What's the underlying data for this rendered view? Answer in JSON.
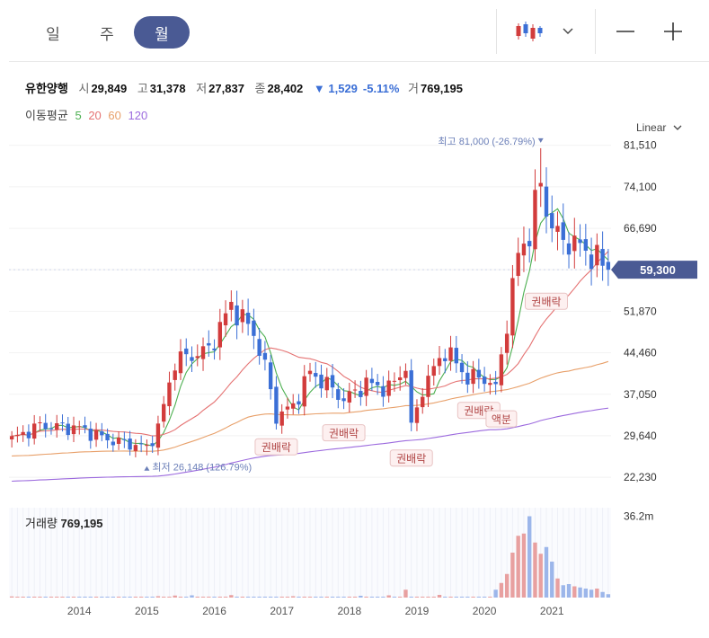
{
  "toolbar": {
    "tabs": [
      {
        "label": "일",
        "active": false
      },
      {
        "label": "주",
        "active": false
      },
      {
        "label": "월",
        "active": true
      }
    ],
    "chart_type_icon": "candlestick-icon",
    "dropdown_icon": "chevron-down-icon",
    "zoom_out_icon": "minus-icon",
    "zoom_in_icon": "plus-icon"
  },
  "quote": {
    "name": "유한양행",
    "open_label": "시",
    "open": "29,849",
    "high_label": "고",
    "high": "31,378",
    "low_label": "저",
    "low": "27,837",
    "close_label": "종",
    "close": "28,402",
    "change": "▼ 1,529",
    "change_pct": "-5.11%",
    "volume_label": "거",
    "volume": "769,195"
  },
  "moving_avg": {
    "label": "이동평균",
    "periods": [
      {
        "value": "5",
        "color": "#4caf50"
      },
      {
        "value": "20",
        "color": "#e57373"
      },
      {
        "value": "60",
        "color": "#e8a06a"
      },
      {
        "value": "120",
        "color": "#9c6ade"
      }
    ]
  },
  "scale": {
    "label": "Linear"
  },
  "colors": {
    "up": "#d23c3c",
    "down": "#3b6fd6",
    "accent": "#4a5a94"
  },
  "chart_data": {
    "type": "candlestick",
    "ylim": [
      20000,
      85000
    ],
    "y_ticks": [
      "81,510",
      "74,100",
      "66,690",
      "59,300",
      "51,870",
      "44,460",
      "37,050",
      "29,640",
      "22,230"
    ],
    "y_tick_values": [
      81510,
      74100,
      66690,
      59300,
      51870,
      44460,
      37050,
      29640,
      22230
    ],
    "current_price_label": "59,300",
    "current_price": 59300,
    "x_ticks": [
      "2014",
      "2015",
      "2016",
      "2017",
      "2018",
      "2019",
      "2020",
      "2021"
    ],
    "x_start": "2013-01",
    "x_end": "2021-11",
    "high_annotation": "최고 81,000 (-26.79%)",
    "high_point": {
      "date": "2020-11",
      "value": 81000
    },
    "low_annotation": "최저 26,148 (126.79%)",
    "low_point": {
      "date": "2015-01",
      "value": 26148
    },
    "events": [
      {
        "label": "권배락",
        "date": "2016-12",
        "value": 32000
      },
      {
        "label": "권배락",
        "date": "2017-12",
        "value": 34500
      },
      {
        "label": "권배락",
        "date": "2018-12",
        "value": 30000
      },
      {
        "label": "권배락",
        "date": "2019-12",
        "value": 38500
      },
      {
        "label": "액분",
        "date": "2020-04",
        "value": 37000
      },
      {
        "label": "권배락",
        "date": "2020-12",
        "value": 58000
      }
    ],
    "key_points": [
      {
        "date": "2013-01",
        "value": 29000
      },
      {
        "date": "2013-06",
        "value": 31500
      },
      {
        "date": "2014-01",
        "value": 31000
      },
      {
        "date": "2014-06",
        "value": 29000
      },
      {
        "date": "2015-01",
        "value": 27500
      },
      {
        "date": "2015-03",
        "value": 31000
      },
      {
        "date": "2015-06",
        "value": 43000
      },
      {
        "date": "2015-12",
        "value": 45000
      },
      {
        "date": "2016-04",
        "value": 53000
      },
      {
        "date": "2016-08",
        "value": 48000
      },
      {
        "date": "2016-10",
        "value": 42000
      },
      {
        "date": "2016-12",
        "value": 33000
      },
      {
        "date": "2017-03",
        "value": 35000
      },
      {
        "date": "2017-06",
        "value": 41000
      },
      {
        "date": "2017-10",
        "value": 38000
      },
      {
        "date": "2017-12",
        "value": 36000
      },
      {
        "date": "2018-04",
        "value": 39000
      },
      {
        "date": "2018-08",
        "value": 38000
      },
      {
        "date": "2018-11",
        "value": 42000
      },
      {
        "date": "2018-12",
        "value": 31000
      },
      {
        "date": "2019-02",
        "value": 38000
      },
      {
        "date": "2019-06",
        "value": 45000
      },
      {
        "date": "2019-10",
        "value": 40000
      },
      {
        "date": "2020-01",
        "value": 40000
      },
      {
        "date": "2020-03",
        "value": 38000
      },
      {
        "date": "2020-05",
        "value": 50000
      },
      {
        "date": "2020-07",
        "value": 62000
      },
      {
        "date": "2020-09",
        "value": 66000
      },
      {
        "date": "2020-11",
        "value": 75000
      },
      {
        "date": "2020-12",
        "value": 70000
      },
      {
        "date": "2021-02",
        "value": 65000
      },
      {
        "date": "2021-05",
        "value": 64000
      },
      {
        "date": "2021-08",
        "value": 62000
      },
      {
        "date": "2021-11",
        "value": 59300
      }
    ],
    "ma_series": [
      {
        "name": "5",
        "color": "#4caf50",
        "period": 5
      },
      {
        "name": "20",
        "color": "#e57373",
        "period": 20
      },
      {
        "name": "60",
        "color": "#e8a06a",
        "period": 60
      },
      {
        "name": "120",
        "color": "#9c6ade",
        "period": 120
      }
    ],
    "volume": {
      "label": "거래량",
      "value": "769,195",
      "max_label": "36.2m",
      "ylim": [
        0,
        40
      ],
      "unit": "m",
      "bars": [
        {
          "date": "2013-01",
          "value": 0.5
        },
        {
          "date": "2015-03",
          "value": 0.6
        },
        {
          "date": "2015-06",
          "value": 0.9
        },
        {
          "date": "2015-09",
          "value": 1.0
        },
        {
          "date": "2016-04",
          "value": 1.1
        },
        {
          "date": "2017-03",
          "value": 0.6
        },
        {
          "date": "2018-03",
          "value": 0.8
        },
        {
          "date": "2018-08",
          "value": 1.0
        },
        {
          "date": "2018-11",
          "value": 3.5
        },
        {
          "date": "2019-05",
          "value": 1.2
        },
        {
          "date": "2020-03",
          "value": 3.5
        },
        {
          "date": "2020-04",
          "value": 6.5
        },
        {
          "date": "2020-05",
          "value": 10.5
        },
        {
          "date": "2020-06",
          "value": 20
        },
        {
          "date": "2020-07",
          "value": 27.5
        },
        {
          "date": "2020-08",
          "value": 28.5
        },
        {
          "date": "2020-09",
          "value": 36.2
        },
        {
          "date": "2020-10",
          "value": 24.5
        },
        {
          "date": "2020-11",
          "value": 19.5
        },
        {
          "date": "2020-12",
          "value": 22.5
        },
        {
          "date": "2021-01",
          "value": 16
        },
        {
          "date": "2021-02",
          "value": 8.5
        },
        {
          "date": "2021-03",
          "value": 5.5
        },
        {
          "date": "2021-04",
          "value": 6
        },
        {
          "date": "2021-05",
          "value": 5
        },
        {
          "date": "2021-06",
          "value": 4.5
        },
        {
          "date": "2021-07",
          "value": 4
        },
        {
          "date": "2021-08",
          "value": 3.5
        },
        {
          "date": "2021-09",
          "value": 4
        },
        {
          "date": "2021-10",
          "value": 2.5
        },
        {
          "date": "2021-11",
          "value": 1.5
        }
      ]
    }
  }
}
